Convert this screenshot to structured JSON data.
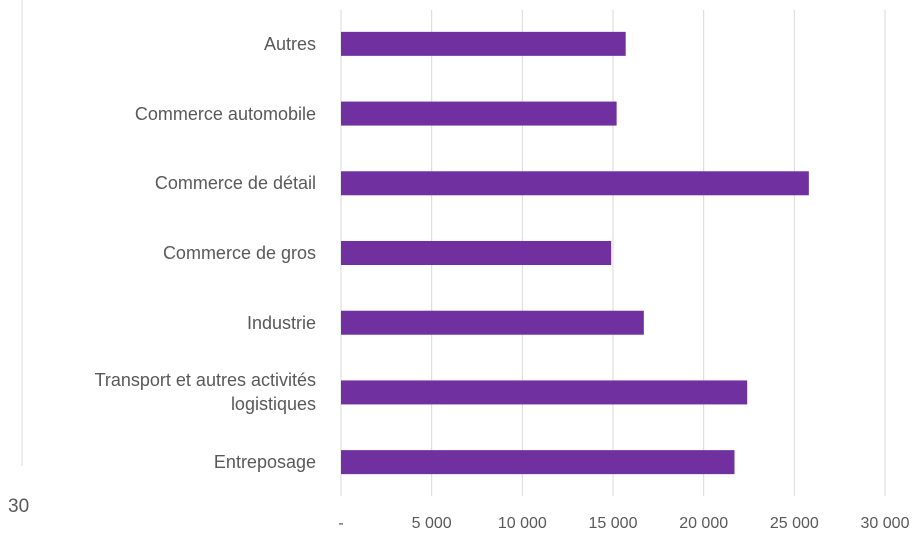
{
  "chart_data": {
    "type": "bar",
    "orientation": "horizontal",
    "categories": [
      "Autres",
      "Commerce automobile",
      "Commerce de détail",
      "Commerce de gros",
      "Industrie",
      "Transport et autres activités logistiques",
      "Entreposage"
    ],
    "values": [
      15700,
      15200,
      25800,
      14900,
      16700,
      22400,
      21700
    ],
    "color": "#7030a0",
    "xlim": [
      0,
      30000
    ],
    "xticks": [
      {
        "value": 0,
        "label": "-"
      },
      {
        "value": 5000,
        "label": "5 000"
      },
      {
        "value": 10000,
        "label": "10 000"
      },
      {
        "value": 15000,
        "label": "15 000"
      },
      {
        "value": 20000,
        "label": "20 000"
      },
      {
        "value": 25000,
        "label": "25 000"
      },
      {
        "value": 30000,
        "label": "30 000"
      }
    ],
    "grid": true,
    "annotations": [
      "30"
    ]
  }
}
